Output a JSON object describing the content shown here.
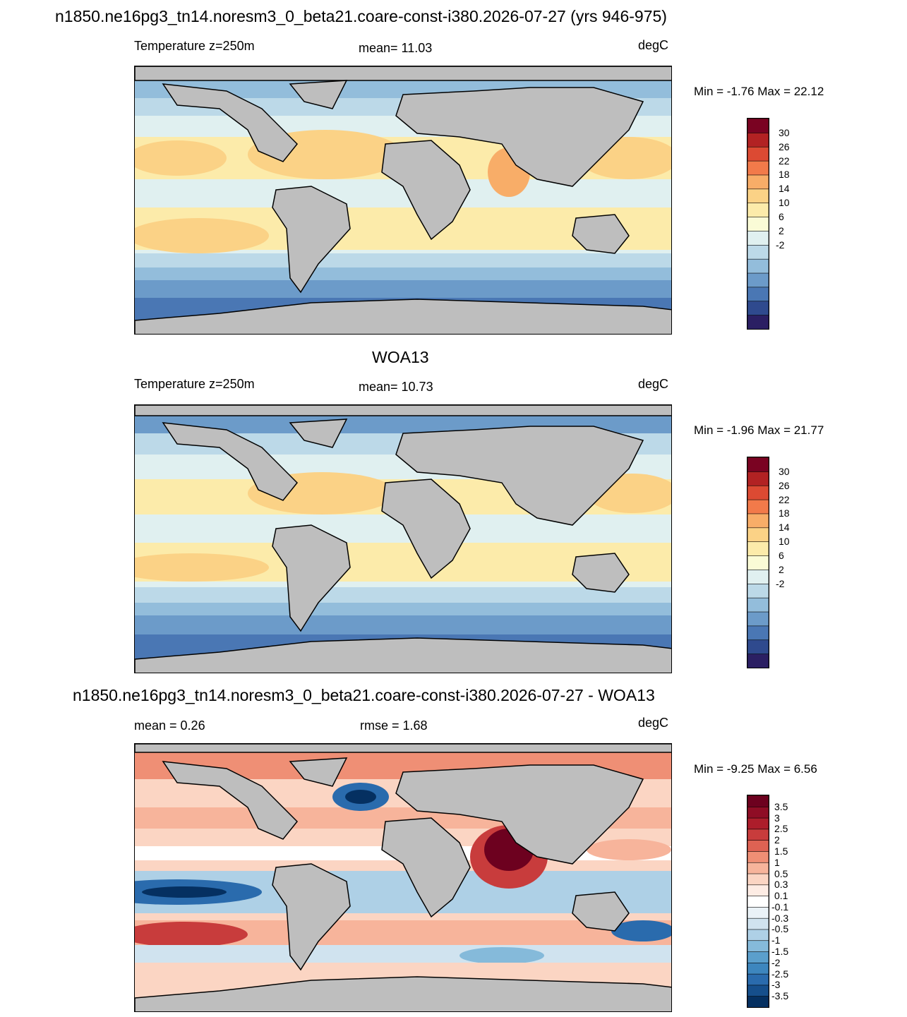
{
  "panels": [
    {
      "title": "n1850.ne16pg3_tn14.noresm3_0_beta21.coare-const-i380.2026-07-27 (yrs 946-975)",
      "left_label": "Temperature z=250m",
      "center_label": "mean=  11.03",
      "units": "degC",
      "minmax": "Min =  -1.76 Max =  22.12",
      "colorbar": {
        "colors": [
          "#2b1f63",
          "#2f4a8e",
          "#4a77b4",
          "#6c9bc9",
          "#93bddb",
          "#bcd9e8",
          "#e0f0f0",
          "#fafbd6",
          "#fcebaa",
          "#fbd286",
          "#f8ad68",
          "#f27a4a",
          "#dc4a33",
          "#b22223",
          "#7a0322"
        ],
        "tick_labels": [
          "30",
          "26",
          "22",
          "18",
          "14",
          "10",
          "6",
          "2",
          "-2"
        ]
      }
    },
    {
      "title": "WOA13",
      "left_label": "Temperature z=250m",
      "center_label": "mean=  10.73",
      "units": "degC",
      "minmax": "Min =  -1.96 Max =  21.77",
      "colorbar": {
        "colors": [
          "#2b1f63",
          "#2f4a8e",
          "#4a77b4",
          "#6c9bc9",
          "#93bddb",
          "#bcd9e8",
          "#e0f0f0",
          "#fafbd6",
          "#fcebaa",
          "#fbd286",
          "#f8ad68",
          "#f27a4a",
          "#dc4a33",
          "#b22223",
          "#7a0322"
        ],
        "tick_labels": [
          "30",
          "26",
          "22",
          "18",
          "14",
          "10",
          "6",
          "2",
          "-2"
        ]
      }
    },
    {
      "title": "n1850.ne16pg3_tn14.noresm3_0_beta21.coare-const-i380.2026-07-27 - WOA13",
      "left_label": "mean =   0.26",
      "center_label": "rmse =   1.68",
      "units": "degC",
      "minmax": "Min =  -9.25 Max =   6.56",
      "colorbar": {
        "colors": [
          "#053061",
          "#164f8c",
          "#2a6bad",
          "#3d86be",
          "#5b9fcc",
          "#85bada",
          "#aed0e6",
          "#d0e3ef",
          "#eaf2f7",
          "#ffffff",
          "#fdece4",
          "#fbd5c3",
          "#f7b49b",
          "#ef8f75",
          "#de6253",
          "#c83c3c",
          "#ad1d2b",
          "#8f0d25",
          "#6d011f"
        ],
        "tick_labels": [
          "3.5",
          "3",
          "2.5",
          "2",
          "1.5",
          "1",
          "0.5",
          "0.3",
          "0.1",
          "-0.1",
          "-0.3",
          "-0.5",
          "-1",
          "-1.5",
          "-2",
          "-2.5",
          "-3",
          "-3.5"
        ]
      }
    }
  ]
}
